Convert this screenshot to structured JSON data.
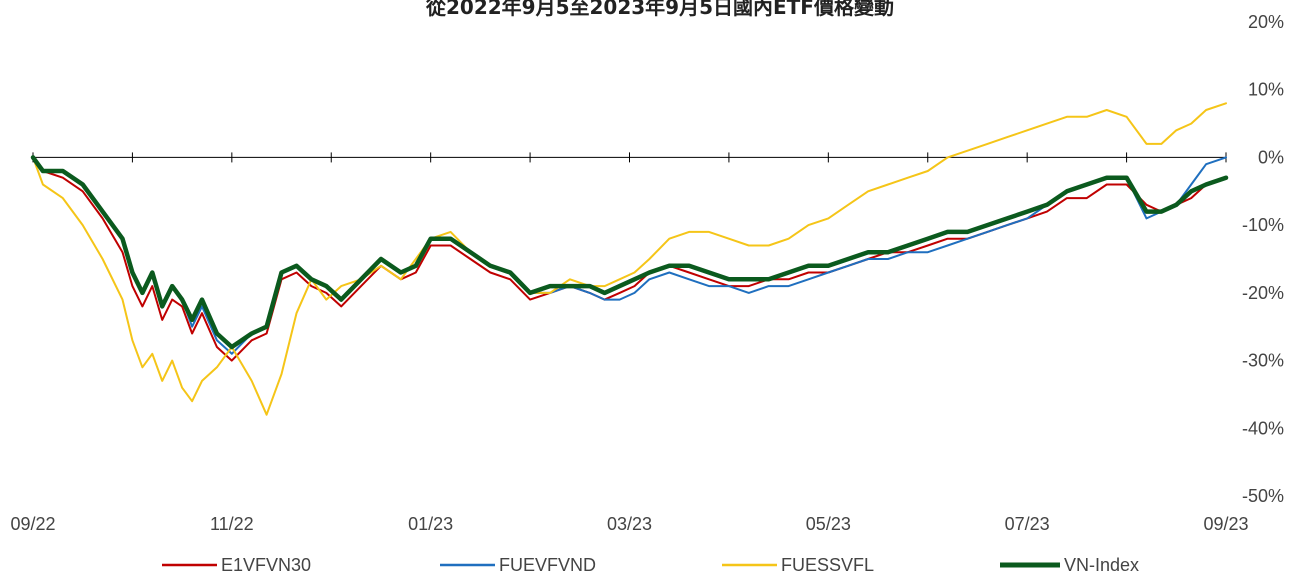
{
  "chart_data": {
    "type": "line",
    "title": "從2022年9月5至2023年9月5日國內ETF價格變動",
    "xlabel": "",
    "ylabel": "",
    "x_tick_labels": [
      "09/22",
      "11/22",
      "01/23",
      "03/23",
      "05/23",
      "07/23",
      "09/23"
    ],
    "x_tick_positions": [
      0,
      2,
      4,
      6,
      8,
      10,
      12
    ],
    "xlim": [
      0,
      12
    ],
    "y_tick_labels": [
      "20%",
      "10%",
      "0%",
      "-10%",
      "-20%",
      "-30%",
      "-40%",
      "-50%"
    ],
    "y_tick_values": [
      20,
      10,
      0,
      -10,
      -20,
      -30,
      -40,
      -50
    ],
    "ylim": [
      -50,
      20
    ],
    "y_unit": "%",
    "y_axis_side": "right",
    "zero_line": true,
    "grid": false,
    "legend_position": "bottom",
    "series": [
      {
        "name": "E1VFVN30",
        "color": "#C00000",
        "x": [
          0,
          0.1,
          0.3,
          0.5,
          0.7,
          0.9,
          1.0,
          1.1,
          1.2,
          1.3,
          1.4,
          1.5,
          1.6,
          1.7,
          1.85,
          2.0,
          2.2,
          2.35,
          2.5,
          2.65,
          2.8,
          2.95,
          3.1,
          3.3,
          3.5,
          3.7,
          3.85,
          4.0,
          4.2,
          4.4,
          4.6,
          4.8,
          5.0,
          5.2,
          5.4,
          5.6,
          5.75,
          5.9,
          6.05,
          6.2,
          6.4,
          6.6,
          6.8,
          7.0,
          7.2,
          7.4,
          7.6,
          7.8,
          8.0,
          8.2,
          8.4,
          8.6,
          8.8,
          9.0,
          9.2,
          9.4,
          9.6,
          9.8,
          10.0,
          10.2,
          10.4,
          10.6,
          10.8,
          11.0,
          11.2,
          11.35,
          11.5,
          11.65,
          11.8,
          12.0
        ],
        "values": [
          0,
          -2,
          -3,
          -5,
          -9,
          -14,
          -19,
          -22,
          -19,
          -24,
          -21,
          -22,
          -26,
          -23,
          -28,
          -30,
          -27,
          -26,
          -18,
          -17,
          -19,
          -20,
          -22,
          -19,
          -16,
          -18,
          -17,
          -13,
          -13,
          -15,
          -17,
          -18,
          -21,
          -20,
          -19,
          -20,
          -21,
          -20,
          -19,
          -17,
          -16,
          -17,
          -18,
          -19,
          -19,
          -18,
          -18,
          -17,
          -17,
          -16,
          -15,
          -14,
          -14,
          -13,
          -12,
          -12,
          -11,
          -10,
          -9,
          -8,
          -6,
          -6,
          -4,
          -4,
          -7,
          -8,
          -7,
          -6,
          -4,
          -3
        ]
      },
      {
        "name": "FUEVFVND",
        "color": "#1F6FBF",
        "x": [
          0,
          0.1,
          0.3,
          0.5,
          0.7,
          0.9,
          1.0,
          1.1,
          1.2,
          1.3,
          1.4,
          1.5,
          1.6,
          1.7,
          1.85,
          2.0,
          2.2,
          2.35,
          2.5,
          2.65,
          2.8,
          2.95,
          3.1,
          3.3,
          3.5,
          3.7,
          3.85,
          4.0,
          4.2,
          4.4,
          4.6,
          4.8,
          5.0,
          5.2,
          5.4,
          5.6,
          5.75,
          5.9,
          6.05,
          6.2,
          6.4,
          6.6,
          6.8,
          7.0,
          7.2,
          7.4,
          7.6,
          7.8,
          8.0,
          8.2,
          8.4,
          8.6,
          8.8,
          9.0,
          9.2,
          9.4,
          9.6,
          9.8,
          10.0,
          10.2,
          10.4,
          10.6,
          10.8,
          11.0,
          11.2,
          11.35,
          11.5,
          11.65,
          11.8,
          12.0
        ],
        "values": [
          0,
          -2,
          -2,
          -4,
          -8,
          -12,
          -17,
          -20,
          -17,
          -22,
          -19,
          -21,
          -25,
          -22,
          -27,
          -29,
          -26,
          -25,
          -17,
          -16,
          -18,
          -19,
          -21,
          -18,
          -15,
          -17,
          -16,
          -12,
          -12,
          -14,
          -16,
          -17,
          -20,
          -20,
          -19,
          -20,
          -21,
          -21,
          -20,
          -18,
          -17,
          -18,
          -19,
          -19,
          -20,
          -19,
          -19,
          -18,
          -17,
          -16,
          -15,
          -15,
          -14,
          -14,
          -13,
          -12,
          -11,
          -10,
          -9,
          -7,
          -5,
          -4,
          -3,
          -3,
          -9,
          -8,
          -7,
          -4,
          -1,
          0
        ]
      },
      {
        "name": "FUESSVFL",
        "color": "#F5C518",
        "x": [
          0,
          0.1,
          0.3,
          0.5,
          0.7,
          0.9,
          1.0,
          1.1,
          1.2,
          1.3,
          1.4,
          1.5,
          1.6,
          1.7,
          1.85,
          2.0,
          2.2,
          2.35,
          2.5,
          2.65,
          2.8,
          2.95,
          3.1,
          3.3,
          3.5,
          3.7,
          3.85,
          4.0,
          4.2,
          4.4,
          4.6,
          4.8,
          5.0,
          5.2,
          5.4,
          5.6,
          5.75,
          5.9,
          6.05,
          6.2,
          6.4,
          6.6,
          6.8,
          7.0,
          7.2,
          7.4,
          7.6,
          7.8,
          8.0,
          8.2,
          8.4,
          8.6,
          8.8,
          9.0,
          9.2,
          9.4,
          9.6,
          9.8,
          10.0,
          10.2,
          10.4,
          10.6,
          10.8,
          11.0,
          11.2,
          11.35,
          11.5,
          11.65,
          11.8,
          12.0
        ],
        "values": [
          0,
          -4,
          -6,
          -10,
          -15,
          -21,
          -27,
          -31,
          -29,
          -33,
          -30,
          -34,
          -36,
          -33,
          -31,
          -28,
          -33,
          -38,
          -32,
          -23,
          -18,
          -21,
          -19,
          -18,
          -16,
          -18,
          -15,
          -12,
          -11,
          -14,
          -16,
          -17,
          -20,
          -20,
          -18,
          -19,
          -19,
          -18,
          -17,
          -15,
          -12,
          -11,
          -11,
          -12,
          -13,
          -13,
          -12,
          -10,
          -9,
          -7,
          -5,
          -4,
          -3,
          -2,
          0,
          1,
          2,
          3,
          4,
          5,
          6,
          6,
          7,
          6,
          2,
          2,
          4,
          5,
          7,
          8
        ]
      },
      {
        "name": "VN-Index",
        "color": "#0B5A1E",
        "x": [
          0,
          0.1,
          0.3,
          0.5,
          0.7,
          0.9,
          1.0,
          1.1,
          1.2,
          1.3,
          1.4,
          1.5,
          1.6,
          1.7,
          1.85,
          2.0,
          2.2,
          2.35,
          2.5,
          2.65,
          2.8,
          2.95,
          3.1,
          3.3,
          3.5,
          3.7,
          3.85,
          4.0,
          4.2,
          4.4,
          4.6,
          4.8,
          5.0,
          5.2,
          5.4,
          5.6,
          5.75,
          5.9,
          6.05,
          6.2,
          6.4,
          6.6,
          6.8,
          7.0,
          7.2,
          7.4,
          7.6,
          7.8,
          8.0,
          8.2,
          8.4,
          8.6,
          8.8,
          9.0,
          9.2,
          9.4,
          9.6,
          9.8,
          10.0,
          10.2,
          10.4,
          10.6,
          10.8,
          11.0,
          11.2,
          11.35,
          11.5,
          11.65,
          11.8,
          12.0
        ],
        "values": [
          0,
          -2,
          -2,
          -4,
          -8,
          -12,
          -17,
          -20,
          -17,
          -22,
          -19,
          -21,
          -24,
          -21,
          -26,
          -28,
          -26,
          -25,
          -17,
          -16,
          -18,
          -19,
          -21,
          -18,
          -15,
          -17,
          -16,
          -12,
          -12,
          -14,
          -16,
          -17,
          -20,
          -19,
          -19,
          -19,
          -20,
          -19,
          -18,
          -17,
          -16,
          -16,
          -17,
          -18,
          -18,
          -18,
          -17,
          -16,
          -16,
          -15,
          -14,
          -14,
          -13,
          -12,
          -11,
          -11,
          -10,
          -9,
          -8,
          -7,
          -5,
          -4,
          -3,
          -3,
          -8,
          -8,
          -7,
          -5,
          -4,
          -3
        ]
      }
    ]
  }
}
